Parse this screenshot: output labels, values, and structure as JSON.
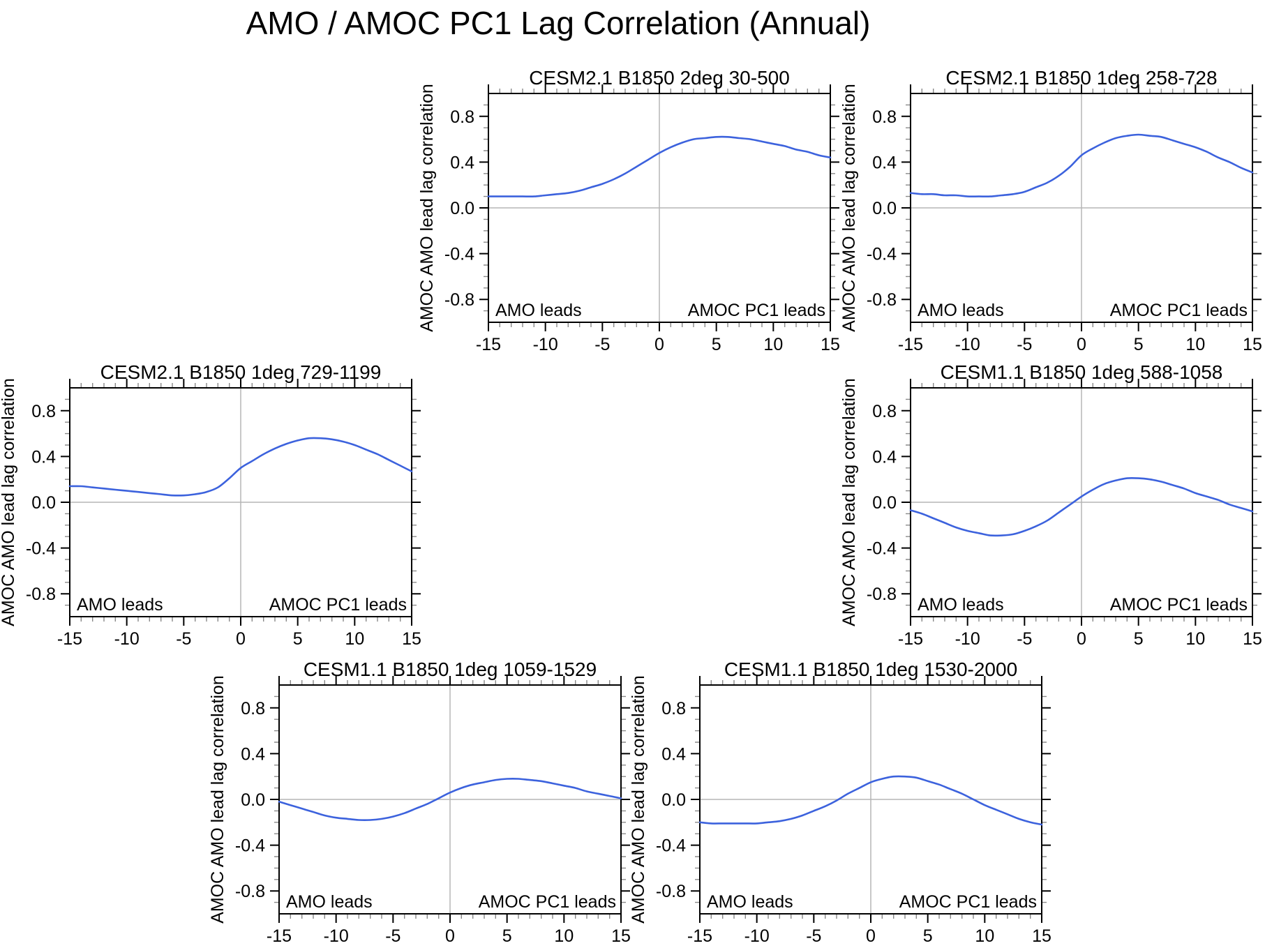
{
  "title": "AMO / AMOC PC1 Lag Correlation (Annual)",
  "chart_data": {
    "type": "line",
    "title": "AMO / AMOC PC1 Lag Correlation (Annual)",
    "x": [
      -15,
      -14,
      -13,
      -12,
      -11,
      -10,
      -9,
      -8,
      -7,
      -6,
      -5,
      -4,
      -3,
      -2,
      -1,
      0,
      1,
      2,
      3,
      4,
      5,
      6,
      7,
      8,
      9,
      10,
      11,
      12,
      13,
      14,
      15
    ],
    "xlim": [
      -15,
      15
    ],
    "ylim": [
      -1.0,
      1.0
    ],
    "x_major_ticks": [
      -15,
      -10,
      -5,
      0,
      5,
      10,
      15
    ],
    "y_major_ticks": [
      -0.8,
      -0.4,
      0.0,
      0.4,
      0.8
    ],
    "x_minor_step": 1,
    "y_minor_step": 0.1,
    "ylabel": "AMOC AMO lead lag correlation",
    "left_annotation": "AMO leads",
    "right_annotation": "AMOC PC1 leads",
    "legend_position": "none",
    "grid": "zero-reference-lines-only",
    "line_color": "#3c62dd",
    "zero_line_color": "#b5b5b5",
    "series": [
      {
        "name": "CESM2.1 B1850 2deg 30-500",
        "values": [
          0.1,
          0.1,
          0.1,
          0.1,
          0.1,
          0.11,
          0.12,
          0.13,
          0.15,
          0.18,
          0.21,
          0.25,
          0.3,
          0.36,
          0.42,
          0.48,
          0.53,
          0.57,
          0.6,
          0.61,
          0.62,
          0.62,
          0.61,
          0.6,
          0.58,
          0.56,
          0.54,
          0.51,
          0.49,
          0.46,
          0.44
        ]
      },
      {
        "name": "CESM2.1 B1850 1deg 258-728",
        "values": [
          0.13,
          0.12,
          0.12,
          0.11,
          0.11,
          0.1,
          0.1,
          0.1,
          0.11,
          0.12,
          0.14,
          0.18,
          0.22,
          0.28,
          0.36,
          0.46,
          0.52,
          0.57,
          0.61,
          0.63,
          0.64,
          0.63,
          0.62,
          0.59,
          0.56,
          0.53,
          0.49,
          0.44,
          0.4,
          0.35,
          0.31
        ]
      },
      {
        "name": "CESM2.1 B1850 1deg 729-1199",
        "values": [
          0.14,
          0.14,
          0.13,
          0.12,
          0.11,
          0.1,
          0.09,
          0.08,
          0.07,
          0.06,
          0.06,
          0.07,
          0.09,
          0.13,
          0.21,
          0.3,
          0.36,
          0.42,
          0.47,
          0.51,
          0.54,
          0.56,
          0.56,
          0.55,
          0.53,
          0.5,
          0.46,
          0.42,
          0.37,
          0.32,
          0.27
        ]
      },
      {
        "name": "CESM1.1 B1850 1deg 588-1058",
        "values": [
          -0.07,
          -0.1,
          -0.14,
          -0.18,
          -0.22,
          -0.25,
          -0.27,
          -0.29,
          -0.29,
          -0.28,
          -0.25,
          -0.21,
          -0.16,
          -0.09,
          -0.02,
          0.05,
          0.11,
          0.16,
          0.19,
          0.21,
          0.21,
          0.2,
          0.18,
          0.15,
          0.12,
          0.08,
          0.05,
          0.02,
          -0.02,
          -0.05,
          -0.08
        ]
      },
      {
        "name": "CESM1.1 B1850 1deg 1059-1529",
        "values": [
          -0.02,
          -0.05,
          -0.08,
          -0.11,
          -0.14,
          -0.16,
          -0.17,
          -0.18,
          -0.18,
          -0.17,
          -0.15,
          -0.12,
          -0.08,
          -0.04,
          0.01,
          0.06,
          0.1,
          0.13,
          0.15,
          0.17,
          0.18,
          0.18,
          0.17,
          0.16,
          0.14,
          0.12,
          0.1,
          0.07,
          0.05,
          0.03,
          0.01
        ]
      },
      {
        "name": "CESM1.1 B1850 1deg 1530-2000",
        "values": [
          -0.2,
          -0.21,
          -0.21,
          -0.21,
          -0.21,
          -0.21,
          -0.2,
          -0.19,
          -0.17,
          -0.14,
          -0.1,
          -0.06,
          -0.01,
          0.05,
          0.1,
          0.15,
          0.18,
          0.2,
          0.2,
          0.19,
          0.16,
          0.13,
          0.09,
          0.05,
          0.0,
          -0.05,
          -0.09,
          -0.13,
          -0.17,
          -0.2,
          -0.22
        ]
      }
    ]
  }
}
